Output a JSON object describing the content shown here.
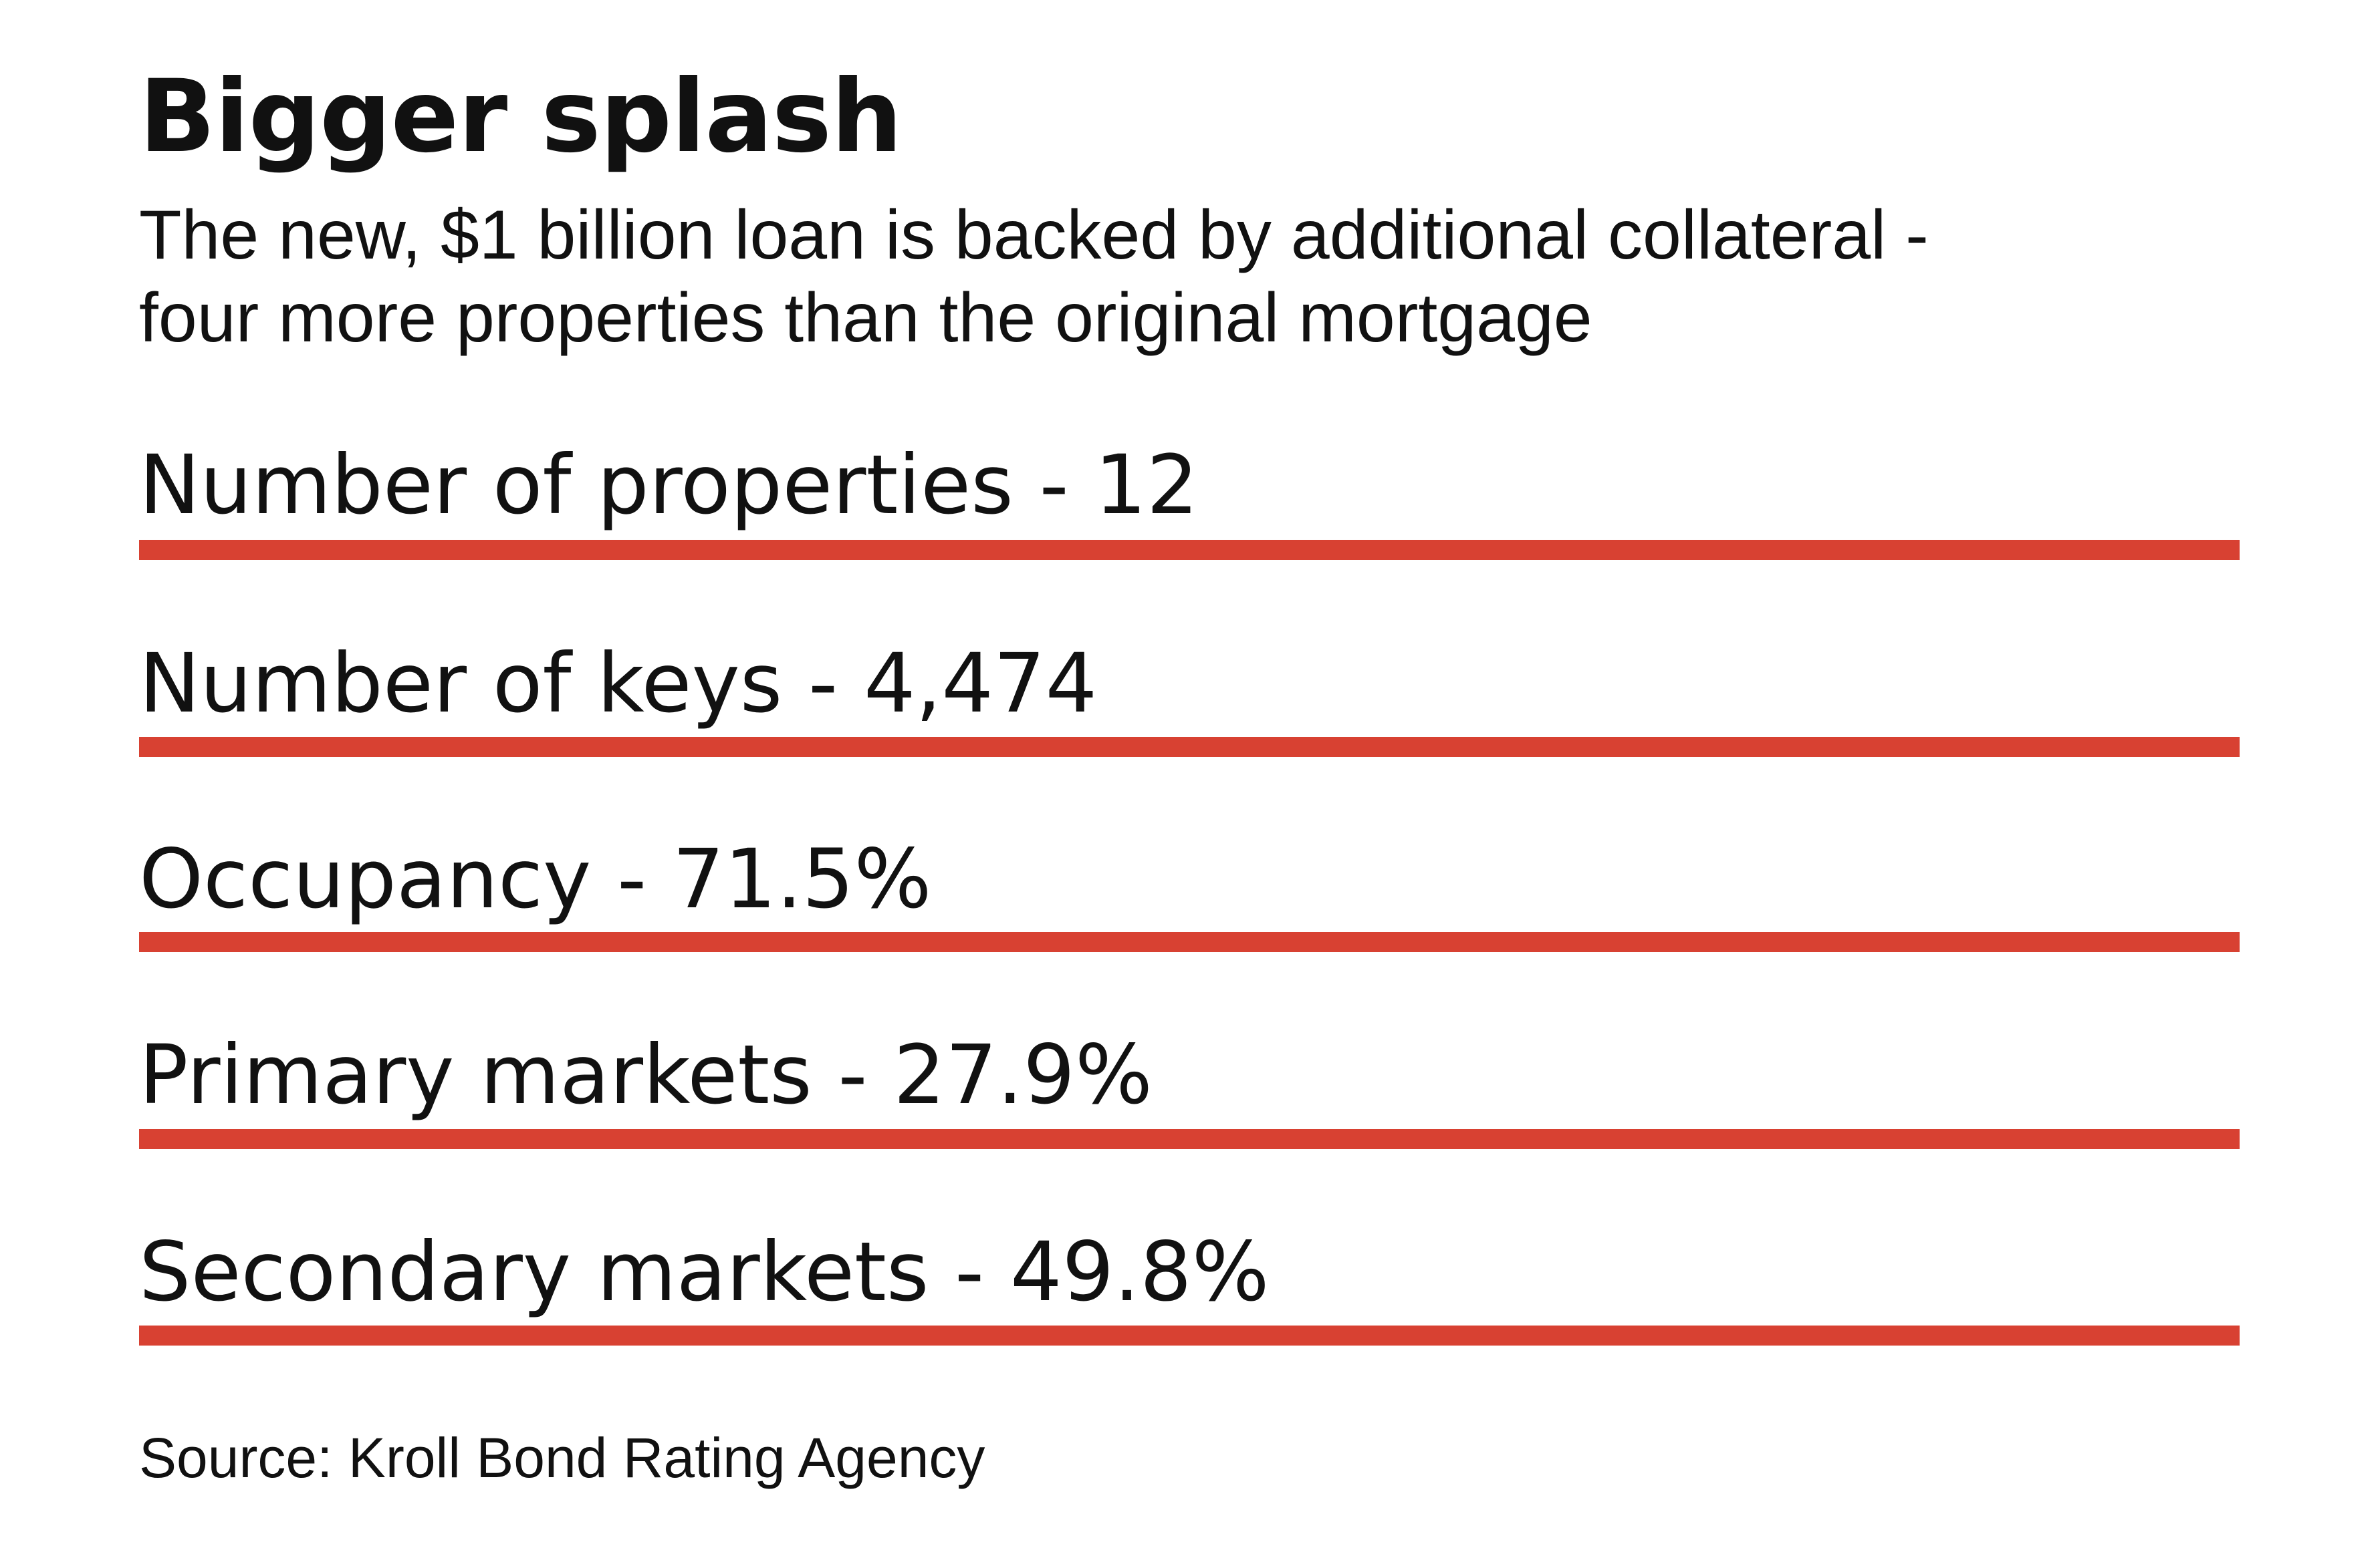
{
  "title": "Bigger splash",
  "subtitle_lines": [
    "The new, $1 billion loan is backed by additional collateral -",
    "four more properties than the original mortgage"
  ],
  "stats": [
    {
      "label": "Number of properties - 12"
    },
    {
      "label": "Number of keys - 4,474"
    },
    {
      "label": "Occupancy - 71.5%"
    },
    {
      "label": "Primary markets - 27.9%"
    },
    {
      "label": "Secondary markets - 49.8%"
    }
  ],
  "source": "Source: Kroll Bond Rating Agency",
  "colors": {
    "accent_rule": "#d84132",
    "text": "#111111",
    "background": "#ffffff"
  }
}
